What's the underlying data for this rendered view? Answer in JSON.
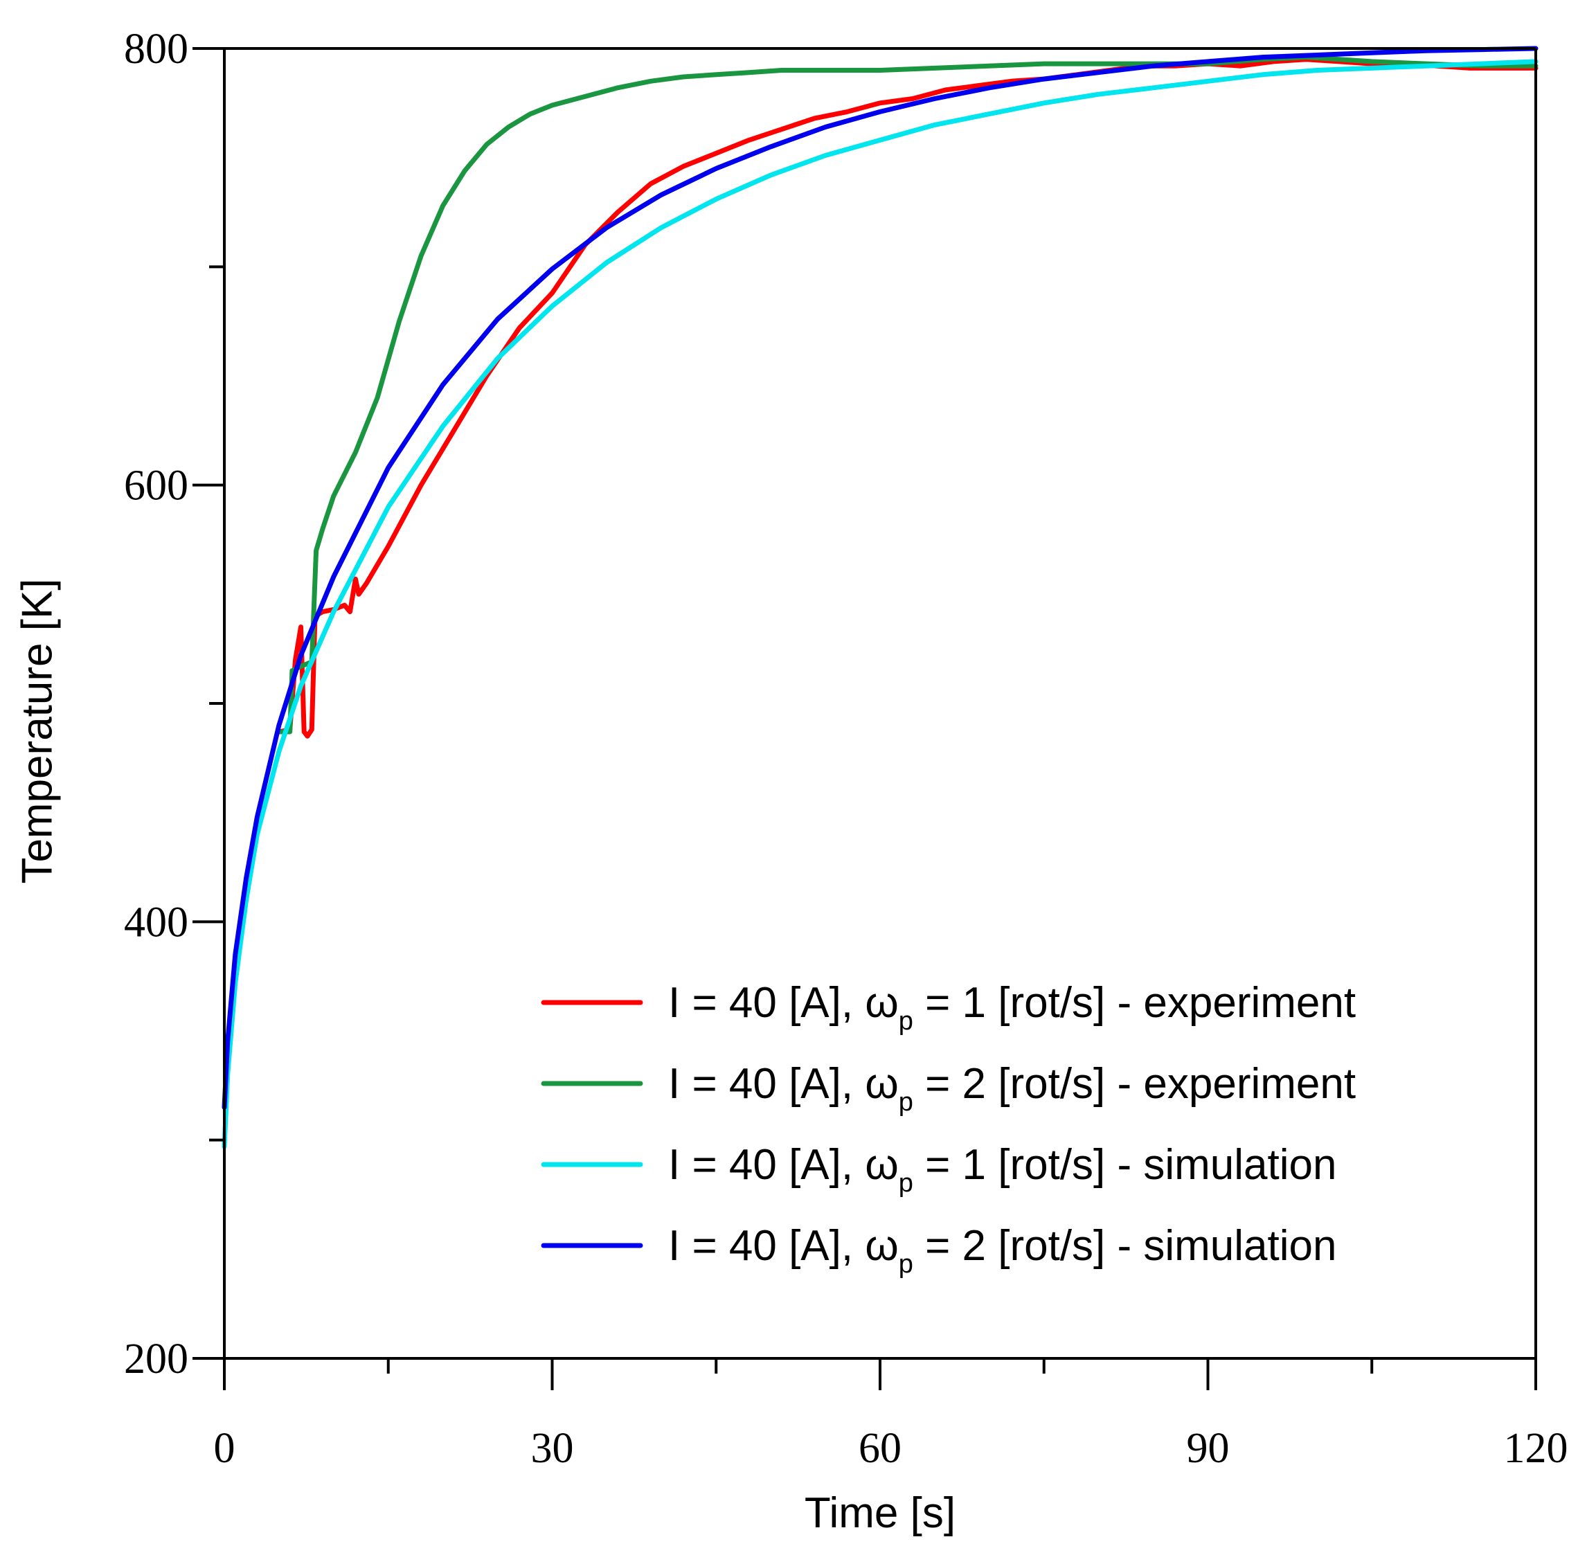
{
  "chart_data": {
    "type": "line",
    "xlabel": "Time [s]",
    "ylabel": "Temperature [K]",
    "xlim": [
      0,
      120
    ],
    "ylim": [
      200,
      800
    ],
    "xticks": [
      0,
      30,
      60,
      90,
      120
    ],
    "yticks": [
      200,
      400,
      600,
      800
    ],
    "grid": false,
    "legend_position": "bottom-right",
    "series": [
      {
        "name": "I = 40 [A], ωp = 1 [rot/s] - experiment",
        "label_main": "I = 40 [A], ω",
        "label_sub": "p",
        "label_rest": " = 1 [rot/s] - experiment",
        "color": "#ff0000",
        "x": [
          5,
          6,
          6.5,
          7,
          7.3,
          7.6,
          8,
          8.3,
          9,
          10,
          11,
          11.5,
          12,
          12.3,
          13,
          15,
          18,
          21,
          24,
          27,
          30,
          33,
          36,
          39,
          42,
          45,
          48,
          51,
          54,
          57,
          60,
          63,
          66,
          69,
          72,
          75,
          78,
          81,
          84,
          87,
          90,
          93,
          96,
          99,
          102,
          105,
          108,
          111,
          114,
          117,
          120
        ],
        "y": [
          487,
          488,
          520,
          535,
          487,
          485,
          488,
          540,
          542,
          543,
          545,
          542,
          557,
          550,
          555,
          572,
          600,
          625,
          650,
          672,
          688,
          710,
          725,
          738,
          746,
          752,
          758,
          763,
          768,
          771,
          775,
          777,
          781,
          783,
          785,
          786,
          788,
          790,
          792,
          792,
          793,
          792,
          794,
          795,
          794,
          793,
          793,
          792,
          791,
          791,
          791
        ]
      },
      {
        "name": "I = 40 [A], ωp = 2 [rot/s] - experiment",
        "label_main": "I = 40 [A], ω",
        "label_sub": "p",
        "label_rest": " = 2 [rot/s] - experiment",
        "color": "#1a9641",
        "x": [
          5,
          6,
          6.2,
          7,
          8,
          8.4,
          9,
          10,
          12,
          14,
          16,
          18,
          20,
          22,
          24,
          26,
          28,
          30,
          33,
          36,
          39,
          42,
          45,
          48,
          51,
          54,
          57,
          60,
          65,
          70,
          75,
          80,
          85,
          90,
          95,
          99,
          102,
          105,
          110,
          115,
          120
        ],
        "y": [
          487,
          487,
          515,
          517,
          519,
          570,
          580,
          595,
          615,
          640,
          675,
          705,
          728,
          744,
          756,
          764,
          770,
          774,
          778,
          782,
          785,
          787,
          788,
          789,
          790,
          790,
          790,
          790,
          791,
          792,
          793,
          793,
          793,
          793,
          795,
          796,
          795,
          794,
          793,
          792,
          792
        ]
      },
      {
        "name": "I = 40 [A], ωp = 1 [rot/s] - simulation",
        "label_main": "I = 40 [A], ω",
        "label_sub": "p",
        "label_rest": " = 1 [rot/s] - simulation",
        "color": "#00e5ee",
        "x": [
          0,
          0.3,
          1,
          2,
          3,
          5,
          7,
          10,
          15,
          20,
          25,
          30,
          35,
          40,
          45,
          50,
          55,
          60,
          65,
          70,
          75,
          80,
          85,
          90,
          95,
          100,
          105,
          110,
          115,
          120
        ],
        "y": [
          297,
          330,
          372,
          410,
          440,
          478,
          508,
          542,
          590,
          627,
          658,
          682,
          702,
          718,
          731,
          742,
          751,
          758,
          765,
          770,
          775,
          779,
          782,
          785,
          788,
          790,
          791,
          792,
          793,
          794
        ]
      },
      {
        "name": "I = 40 [A], ωp = 2 [rot/s] - simulation",
        "label_main": "I = 40 [A], ω",
        "label_sub": "p",
        "label_rest": " = 2 [rot/s] - simulation",
        "color": "#0000ee",
        "x": [
          0,
          0.3,
          1,
          2,
          3,
          5,
          7,
          10,
          15,
          20,
          25,
          30,
          35,
          40,
          45,
          50,
          55,
          60,
          65,
          70,
          75,
          80,
          85,
          90,
          95,
          100,
          105,
          110,
          115,
          120
        ],
        "y": [
          315,
          345,
          385,
          420,
          448,
          490,
          522,
          558,
          608,
          646,
          676,
          699,
          718,
          733,
          745,
          755,
          764,
          771,
          777,
          782,
          786,
          789,
          792,
          794,
          796,
          797,
          798,
          799,
          799.5,
          800
        ]
      }
    ]
  }
}
